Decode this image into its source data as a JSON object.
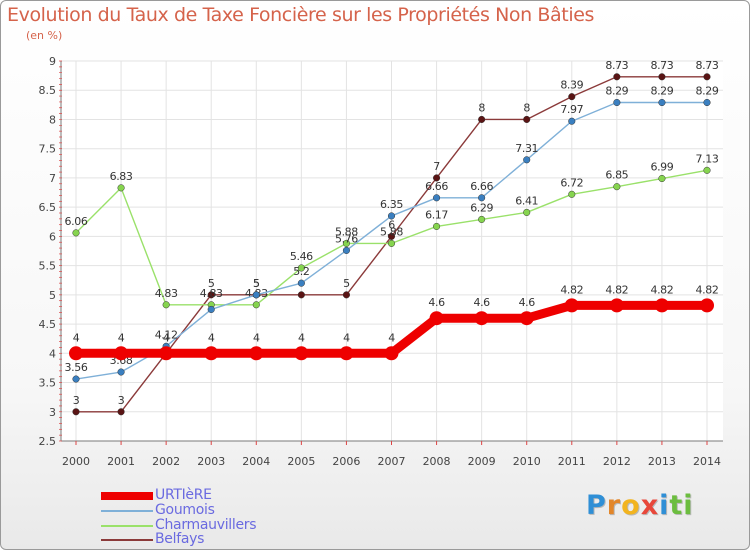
{
  "title": "Evolution du Taux de Taxe Foncière sur les Propriétés Non Bâties",
  "unit_label": "(en %)",
  "logo": {
    "letters": [
      "P",
      "r",
      "o",
      "x",
      "i",
      "t",
      "i"
    ],
    "colors": [
      "#2f8fd6",
      "#e2862a",
      "#f2b41f",
      "#e8473a",
      "#2f8fd6",
      "#6cbd3f",
      "#6cbd3f"
    ]
  },
  "chart_data": {
    "type": "line",
    "title": "Evolution du Taux de Taxe Foncière sur les Propriétés Non Bâties",
    "xlabel": "",
    "ylabel": "(en %)",
    "ylim": [
      2.5,
      9
    ],
    "yticks": [
      "2.5",
      "3",
      "3.5",
      "4",
      "4.5",
      "5",
      "5.5",
      "6",
      "6.5",
      "7",
      "7.5",
      "8",
      "8.5",
      "9"
    ],
    "categories": [
      "2000",
      "2001",
      "2002",
      "2003",
      "2004",
      "2005",
      "2006",
      "2007",
      "2008",
      "2009",
      "2010",
      "2011",
      "2012",
      "2013",
      "2014"
    ],
    "grid": true,
    "legend_position": "bottom-left",
    "series": [
      {
        "name": "Belfays",
        "color": "#8b3a3a",
        "marker": "#5a1414",
        "values": [
          3,
          3,
          4,
          5,
          5,
          5,
          5,
          6,
          7,
          8,
          8,
          8.39,
          8.73,
          8.73,
          8.73
        ],
        "labels": [
          "3",
          "3",
          "",
          "5",
          "5",
          "",
          "5",
          "6",
          "7",
          "8",
          "8",
          "8.39",
          "8.73",
          "8.73",
          "8.73"
        ]
      },
      {
        "name": "Charmauvillers",
        "color": "#9ae16a",
        "marker": "#86d44f",
        "values": [
          6.06,
          6.83,
          4.83,
          4.83,
          4.83,
          5.46,
          5.88,
          5.88,
          6.17,
          6.29,
          6.41,
          6.72,
          6.85,
          6.99,
          7.13
        ],
        "labels": [
          "6.06",
          "6.83",
          "4.83",
          "4.83",
          "4.83",
          "5.46",
          "5.88",
          "5.88",
          "6.17",
          "6.29",
          "6.41",
          "6.72",
          "6.85",
          "6.99",
          "7.13"
        ]
      },
      {
        "name": "Goumois",
        "color": "#7fb0d8",
        "marker": "#3a7fc0",
        "values": [
          3.56,
          3.68,
          4.12,
          4.75,
          5,
          5.2,
          5.76,
          6.35,
          6.66,
          6.66,
          7.31,
          7.97,
          8.29,
          8.29,
          8.29
        ],
        "labels": [
          "3.56",
          "3.68",
          "4.12",
          "",
          "5",
          "5.2",
          "5.76",
          "6.35",
          "6.66",
          "6.66",
          "7.31",
          "7.97",
          "8.29",
          "8.29",
          "8.29"
        ]
      },
      {
        "name": "URTIèRE",
        "color": "#ee0000",
        "marker": "#ee0000",
        "values": [
          4,
          4,
          4,
          4,
          4,
          4,
          4,
          4,
          4.6,
          4.6,
          4.6,
          4.82,
          4.82,
          4.82,
          4.82
        ],
        "labels": [
          "4",
          "4",
          "4",
          "4",
          "4",
          "4",
          "4",
          "4",
          "4.6",
          "4.6",
          "4.6",
          "4.82",
          "4.82",
          "4.82",
          "4.82"
        ]
      }
    ],
    "legend": [
      "URTIèRE",
      "Goumois",
      "Charmauvillers",
      "Belfays"
    ]
  }
}
